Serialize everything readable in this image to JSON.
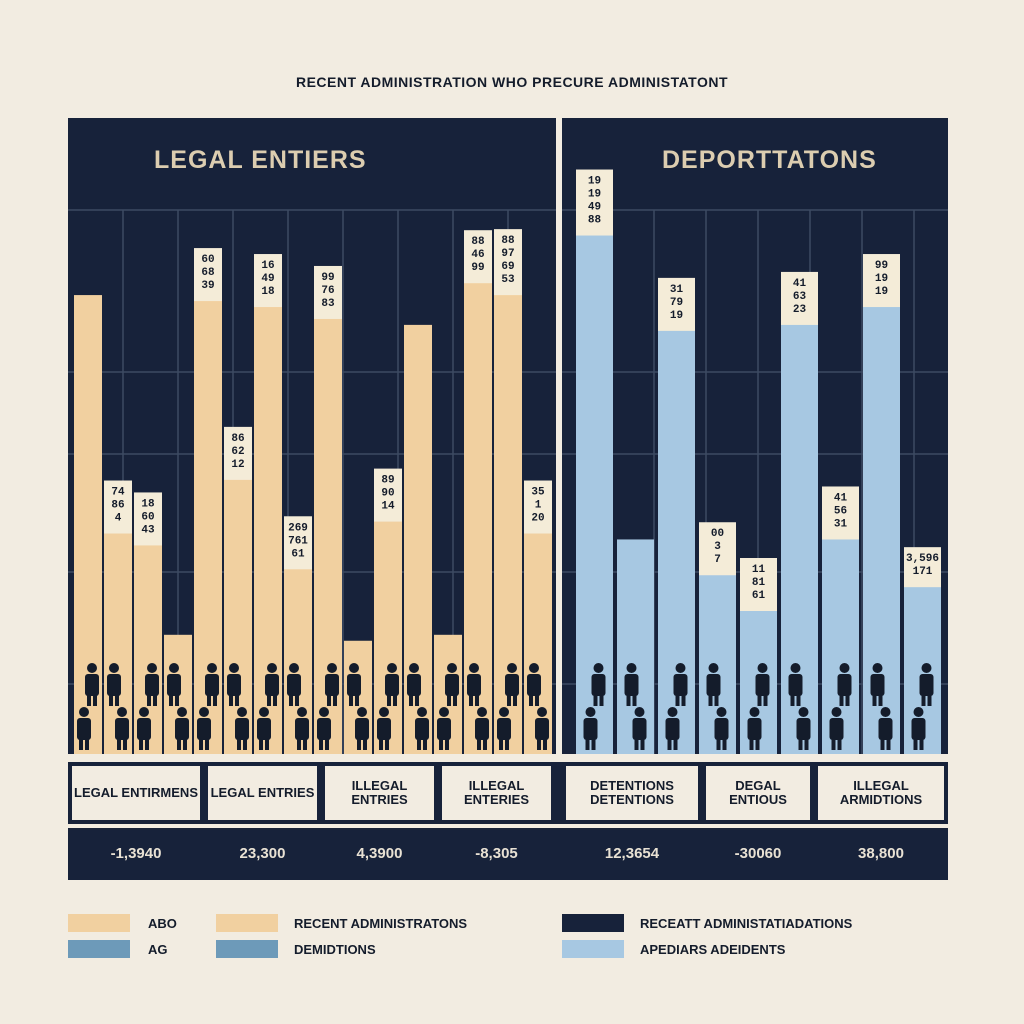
{
  "title": "RECENT ADMINISTRATION WHO PRECURE ADMINISTATONT",
  "colors": {
    "legal": "#f1d0a0",
    "deport": "#a7c8e2",
    "panel": "#17223a",
    "label_box": "#f4ecd8"
  },
  "chart_data": [
    {
      "type": "bar",
      "title": "LEGAL ENTIERS",
      "ylim": [
        0,
        10
      ],
      "grid": true,
      "bars": [
        {
          "value": 7.7,
          "label": ""
        },
        {
          "value": 3.8,
          "label": "74\n86\n4"
        },
        {
          "value": 3.6,
          "label": "18\n60\n43"
        },
        {
          "value": 2.0,
          "label": ""
        },
        {
          "value": 7.7,
          "label": "60\n68\n39"
        },
        {
          "value": 4.7,
          "label": "86\n62\n12"
        },
        {
          "value": 7.6,
          "label": "16\n49\n18"
        },
        {
          "value": 3.2,
          "label": "269\n761\n61"
        },
        {
          "value": 7.4,
          "label": "99\n76\n83"
        },
        {
          "value": 1.9,
          "label": ""
        },
        {
          "value": 4.0,
          "label": "89\n90\n14"
        },
        {
          "value": 7.2,
          "label": ""
        },
        {
          "value": 2.0,
          "label": ""
        },
        {
          "value": 8.0,
          "label": "88\n46\n99"
        },
        {
          "value": 7.8,
          "label": "88\n97\n69\n53"
        },
        {
          "value": 3.8,
          "label": "35\n1\n20"
        }
      ]
    },
    {
      "type": "bar",
      "title": "DEPORTTATONS",
      "ylim": [
        0,
        10
      ],
      "grid": true,
      "bars": [
        {
          "value": 8.8,
          "label": "19\n19\n49\n88"
        },
        {
          "value": 3.6,
          "label": ""
        },
        {
          "value": 7.2,
          "label": "31\n79\n19"
        },
        {
          "value": 3.1,
          "label": "00\n3\n7"
        },
        {
          "value": 2.5,
          "label": "11\n81\n61"
        },
        {
          "value": 7.3,
          "label": "41\n63\n23"
        },
        {
          "value": 3.7,
          "label": "41\n56\n31"
        },
        {
          "value": 7.6,
          "label": "99\n19\n19"
        },
        {
          "value": 2.9,
          "label": "3,596\n171"
        }
      ]
    }
  ],
  "table": {
    "headers": [
      "LEGAL ENTIRMENS",
      "LEGAL ENTRIES",
      "ILLEGAL ENTRIES",
      "ILLEGAL ENTERIES",
      "DETENTIONS DETENTIONS",
      "DEGAL ENTIOUS",
      "ILLEGAL ARMIDTIONS"
    ],
    "values": [
      "-1,3940",
      "23,300",
      "4,3900",
      "-8,305",
      "12,3654",
      "-30060",
      "38,800"
    ]
  },
  "legend": [
    {
      "label": "ABO",
      "color": "#f1d0a0"
    },
    {
      "label": "AG",
      "color": "#6d9ab9"
    },
    {
      "label": "RECENT ADMINISTRATONS",
      "color": "#f1d0a0"
    },
    {
      "label": "DEMIDTIONS",
      "color": "#6d9ab9"
    },
    {
      "label": "RECEATT ADMINISTATIADATIONS",
      "color": "#17223a"
    },
    {
      "label": "APEDIARS ADEIDENTS",
      "color": "#a7c8e2"
    }
  ]
}
